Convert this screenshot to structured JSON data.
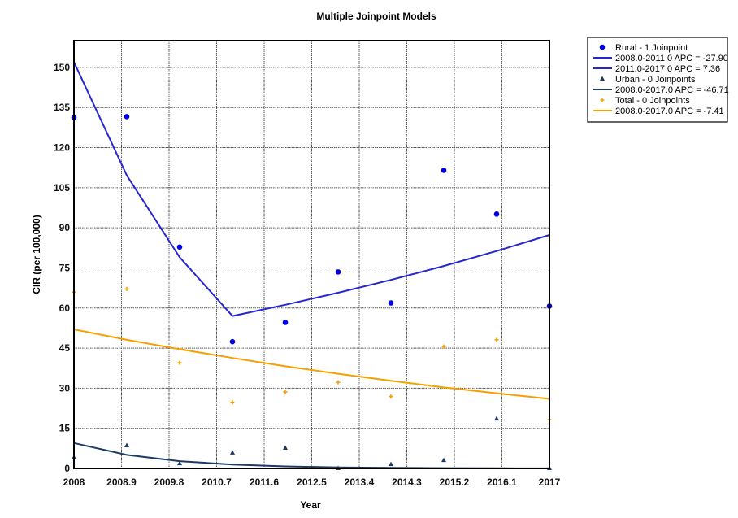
{
  "chart_data": {
    "type": "line",
    "title": "Multiple Joinpoint Models",
    "xlabel": "Year",
    "ylabel": "CIR (per 100,000)",
    "xlim": [
      2008,
      2017
    ],
    "ylim": [
      0,
      160
    ],
    "x_tick_labels": [
      "2008",
      "2008.9",
      "2009.8",
      "2010.7",
      "2011.6",
      "2012.5",
      "2013.4",
      "2014.3",
      "2015.2",
      "2016.1",
      "2017"
    ],
    "y_ticks": [
      0,
      15,
      30,
      45,
      60,
      75,
      90,
      105,
      120,
      135,
      150
    ],
    "grid": true,
    "legend_position": "right",
    "x": [
      2008,
      2009,
      2010,
      2011,
      2012,
      2013,
      2014,
      2015,
      2016,
      2017
    ],
    "series": [
      {
        "name": "Rural - 1 Joinpoint",
        "kind": "points",
        "marker": "circle",
        "color": "#0000e6",
        "values": [
          131.3,
          131.6,
          82.8,
          47.4,
          54.6,
          73.5,
          61.9,
          111.5,
          95.1,
          60.7
        ]
      },
      {
        "name": "Rural fit",
        "kind": "line",
        "color": "#2727d0",
        "values": [
          152,
          109.6,
          79.0,
          57.0,
          61.2,
          65.7,
          70.5,
          75.7,
          81.3,
          87.3
        ],
        "legend": [
          "2008.0-2011.0 APC  = -27.90",
          "2011.0-2017.0 APC  =   7.36"
        ]
      },
      {
        "name": "Urban - 0 Joinpoints",
        "kind": "points",
        "marker": "triangle",
        "color": "#1c3a63",
        "values": [
          4.0,
          8.5,
          1.8,
          5.8,
          7.6,
          0.0,
          1.5,
          3.0,
          18.5,
          0.0
        ]
      },
      {
        "name": "Urban fit",
        "kind": "line",
        "color": "#1c3a63",
        "values": [
          9.5,
          5.06,
          2.7,
          1.44,
          0.77,
          0.41,
          0.22,
          0.12,
          0.06,
          0.03
        ],
        "legend": [
          "2008.0-2017.0 APC  = -46.71"
        ]
      },
      {
        "name": "Total - 0 Joinpoints",
        "kind": "points",
        "marker": "plus",
        "color": "#f5a000",
        "values": [
          65.9,
          67.1,
          39.5,
          24.7,
          28.6,
          32.2,
          26.9,
          45.6,
          48.1,
          18.2
        ]
      },
      {
        "name": "Total fit",
        "kind": "line",
        "color": "#f5a000",
        "values": [
          52.0,
          48.1,
          44.6,
          41.3,
          38.2,
          35.4,
          32.8,
          30.3,
          28.1,
          26.0
        ],
        "legend": [
          "2008.0-2017.0 APC  = -7.41"
        ]
      }
    ]
  }
}
